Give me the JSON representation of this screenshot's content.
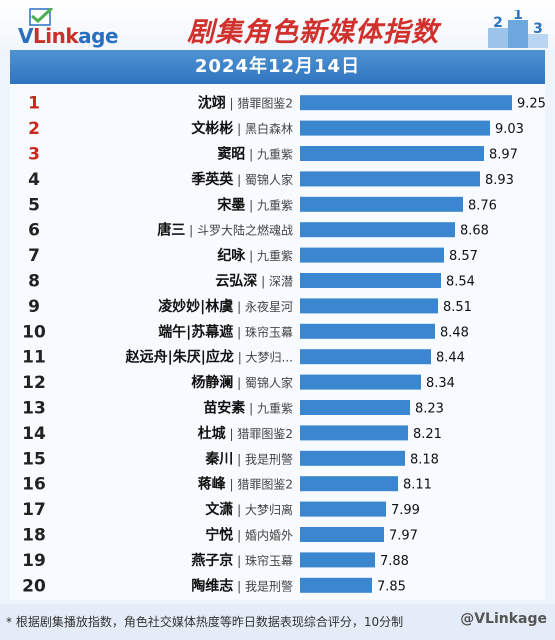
{
  "header": {
    "logo": "VLinkage",
    "title": "剧集角色新媒体指数",
    "date": "2024年12月14日"
  },
  "chart_data": {
    "type": "bar",
    "orientation": "horizontal",
    "title": "剧集角色新媒体指数",
    "subtitle": "2024年12月14日",
    "xlim": [
      0,
      10
    ],
    "grid": false,
    "items": [
      {
        "rank": "1",
        "role": "沈翊",
        "drama": "猎罪图鉴2",
        "value": 9.25
      },
      {
        "rank": "2",
        "role": "文彬彬",
        "drama": "黑白森林",
        "value": 9.03
      },
      {
        "rank": "3",
        "role": "窦昭",
        "drama": "九重紫",
        "value": 8.97
      },
      {
        "rank": "4",
        "role": "季英英",
        "drama": "蜀锦人家",
        "value": 8.93
      },
      {
        "rank": "5",
        "role": "宋墨",
        "drama": "九重紫",
        "value": 8.76
      },
      {
        "rank": "6",
        "role": "唐三",
        "drama": "斗罗大陆之燃魂战",
        "value": 8.68
      },
      {
        "rank": "7",
        "role": "纪咏",
        "drama": "九重紫",
        "value": 8.57
      },
      {
        "rank": "8",
        "role": "云弘深",
        "drama": "深潜",
        "value": 8.54
      },
      {
        "rank": "9",
        "role": "凌妙妙|林虞",
        "drama": "永夜星河",
        "value": 8.51
      },
      {
        "rank": "10",
        "role": "端午|苏幕遮",
        "drama": "珠帘玉幕",
        "value": 8.48
      },
      {
        "rank": "11",
        "role": "赵远舟|朱厌|应龙",
        "drama": "大梦归...",
        "value": 8.44
      },
      {
        "rank": "12",
        "role": "杨静澜",
        "drama": "蜀锦人家",
        "value": 8.34
      },
      {
        "rank": "13",
        "role": "苗安素",
        "drama": "九重紫",
        "value": 8.23
      },
      {
        "rank": "14",
        "role": "杜城",
        "drama": "猎罪图鉴2",
        "value": 8.21
      },
      {
        "rank": "15",
        "role": "秦川",
        "drama": "我是刑警",
        "value": 8.18
      },
      {
        "rank": "16",
        "role": "蒋峰",
        "drama": "猎罪图鉴2",
        "value": 8.11
      },
      {
        "rank": "17",
        "role": "文潇",
        "drama": "大梦归离",
        "value": 7.99
      },
      {
        "rank": "18",
        "role": "宁悦",
        "drama": "婚内婚外",
        "value": 7.97
      },
      {
        "rank": "19",
        "role": "燕子京",
        "drama": "珠帘玉幕",
        "value": 7.88
      },
      {
        "rank": "20",
        "role": "陶维志",
        "drama": "我是刑警",
        "value": 7.85
      }
    ],
    "colors": {
      "bar": "#3b87cf",
      "rank_top": "#c8281e",
      "rank_other": "#222222"
    }
  },
  "footer": {
    "note": "* 根据剧集播放指数，角色社交媒体热度等昨日数据表现综合评分，10分制",
    "brand": "@VLinkage"
  }
}
